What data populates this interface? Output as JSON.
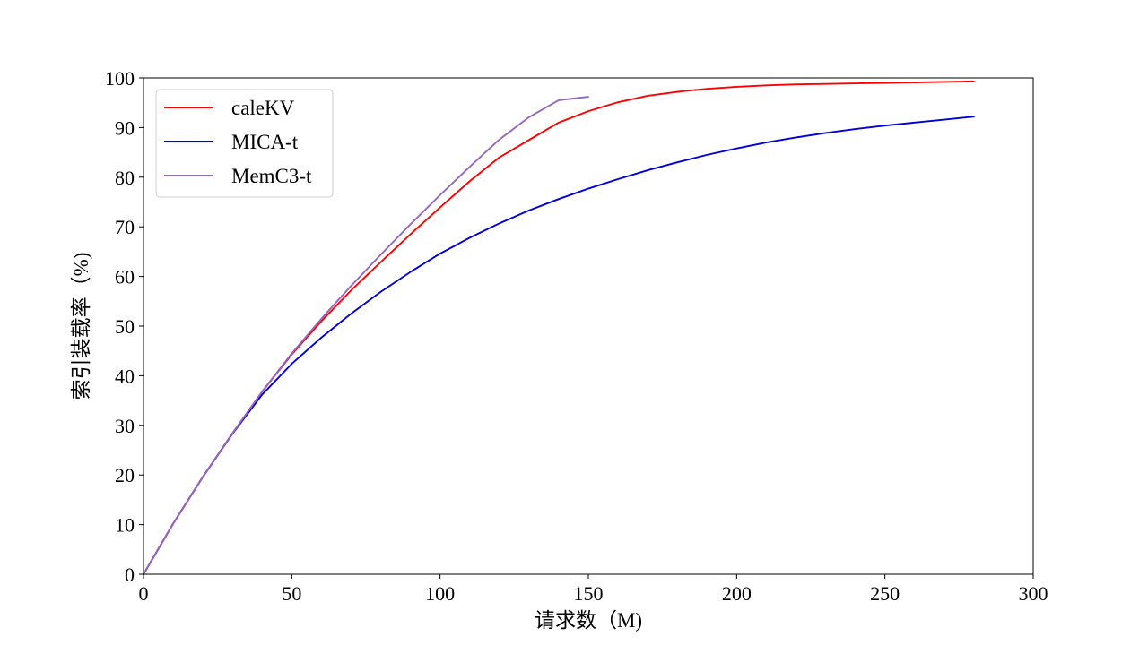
{
  "chart_data": {
    "type": "line",
    "title": "",
    "xlabel": "请求数（M)",
    "ylabel": "索引装载率（%)",
    "xlim": [
      0,
      300
    ],
    "ylim": [
      0,
      100
    ],
    "xticks": [
      0,
      50,
      100,
      150,
      200,
      250,
      300
    ],
    "yticks": [
      0,
      10,
      20,
      30,
      40,
      50,
      60,
      70,
      80,
      90,
      100
    ],
    "grid": false,
    "legend": {
      "position": "top-left",
      "entries": [
        "caleKV",
        "MICA-t",
        "MemC3-t"
      ]
    },
    "series": [
      {
        "name": "caleKV",
        "color": "#ff0000",
        "x": [
          0,
          10,
          20,
          30,
          40,
          50,
          60,
          70,
          80,
          90,
          100,
          110,
          120,
          130,
          140,
          150,
          160,
          170,
          180,
          190,
          200,
          210,
          220,
          230,
          240,
          250,
          260,
          270,
          280
        ],
        "y": [
          0,
          10.2,
          19.6,
          28.4,
          36.8,
          44.3,
          51.0,
          57.2,
          62.9,
          68.5,
          73.9,
          79.2,
          84.0,
          87.5,
          91.0,
          93.3,
          95.1,
          96.4,
          97.2,
          97.8,
          98.2,
          98.5,
          98.7,
          98.8,
          98.9,
          99.0,
          99.1,
          99.2,
          99.3
        ]
      },
      {
        "name": "MICA-t",
        "color": "#0000dd",
        "x": [
          0,
          10,
          20,
          30,
          40,
          50,
          60,
          70,
          80,
          90,
          100,
          110,
          120,
          130,
          140,
          150,
          160,
          170,
          180,
          190,
          200,
          210,
          220,
          230,
          240,
          250,
          260,
          270,
          280
        ],
        "y": [
          0,
          10.2,
          19.6,
          28.3,
          36.2,
          42.4,
          47.7,
          52.5,
          56.9,
          60.9,
          64.6,
          67.8,
          70.7,
          73.3,
          75.6,
          77.7,
          79.6,
          81.4,
          83.0,
          84.5,
          85.8,
          87.0,
          88.0,
          88.9,
          89.7,
          90.4,
          91.0,
          91.6,
          92.2
        ]
      },
      {
        "name": "MemC3-t",
        "color": "#9467bd",
        "x": [
          0,
          10,
          20,
          30,
          40,
          50,
          60,
          70,
          80,
          90,
          100,
          110,
          120,
          130,
          140,
          150
        ],
        "y": [
          0,
          10.2,
          19.6,
          28.4,
          36.8,
          44.5,
          51.5,
          58.1,
          64.4,
          70.5,
          76.4,
          82.1,
          87.6,
          92.1,
          95.5,
          96.2
        ]
      }
    ]
  }
}
